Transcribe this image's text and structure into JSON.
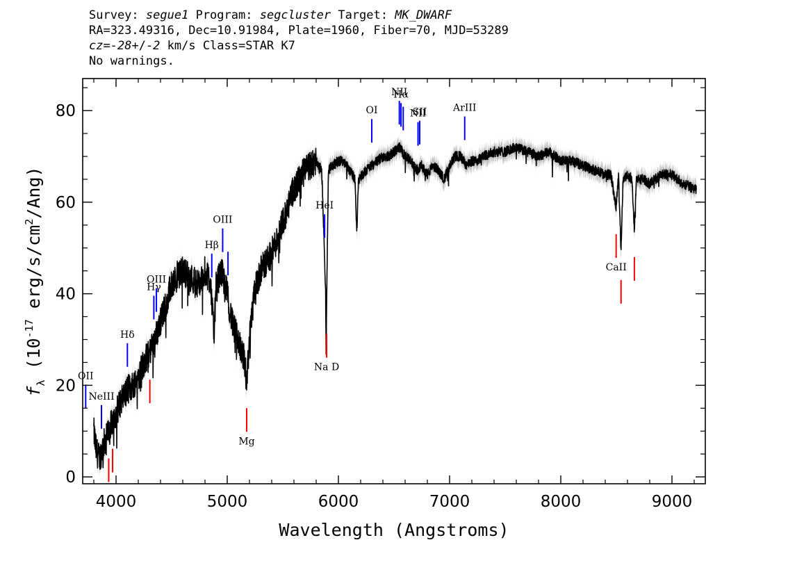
{
  "header": {
    "survey_label": "Survey:",
    "survey": "segue1",
    "program_label": "Program:",
    "program": "segcluster",
    "target_label": "Target:",
    "target": "MK_DWARF",
    "line2": "RA=323.49316, Dec=10.91984, Plate=1960, Fiber=70, MJD=53289",
    "cz_label": "cz=",
    "cz_value": "-28",
    "cz_pm": "+/-",
    "cz_err": "2",
    "cz_rest": " km/s Class=STAR K7",
    "line4": "No warnings."
  },
  "colors": {
    "emission": "#0000ff",
    "absorption": "#ff0000",
    "flux": "#000000",
    "error": "#bebebe"
  },
  "chart_data": {
    "type": "line",
    "xlabel": "Wavelength (Angstroms)",
    "ylabel": "fλ (10^-17 erg/s/cm^2/Ang)",
    "xlim": [
      3700,
      9300
    ],
    "ylim": [
      -1.5,
      87
    ],
    "xticks": [
      4000,
      5000,
      6000,
      7000,
      8000,
      9000
    ],
    "yticks": [
      0,
      20,
      40,
      60,
      80
    ],
    "series": [
      {
        "x": [
          3800,
          3820,
          3850,
          3900,
          3950,
          4000,
          4050,
          4100,
          4150,
          4200,
          4250,
          4300,
          4350,
          4400,
          4450,
          4500,
          4550,
          4600,
          4650,
          4700,
          4750,
          4800,
          4850,
          4880,
          4900,
          4950,
          5000,
          5050,
          5100,
          5150,
          5175,
          5200,
          5250,
          5300,
          5350,
          5400,
          5450,
          5500,
          5550,
          5600,
          5650,
          5700,
          5750,
          5800,
          5850,
          5870,
          5885,
          5890,
          5895,
          5910,
          5950,
          6000,
          6050,
          6100,
          6150,
          6165,
          6180,
          6250,
          6300,
          6350,
          6400,
          6450,
          6500,
          6550,
          6600,
          6650,
          6700,
          6750,
          6800,
          6850,
          6900,
          6950,
          7000,
          7050,
          7100,
          7150,
          7200,
          7250,
          7300,
          7400,
          7500,
          7600,
          7700,
          7800,
          7900,
          8000,
          8100,
          8200,
          8300,
          8400,
          8450,
          8498,
          8520,
          8542,
          8560,
          8600,
          8640,
          8662,
          8680,
          8750,
          8800,
          8900,
          9000,
          9100,
          9200,
          9220
        ],
        "y": [
          10,
          6,
          4,
          8,
          11,
          14,
          17,
          19,
          20,
          22,
          25,
          27,
          30,
          34,
          38,
          42,
          44,
          45,
          44,
          43,
          42,
          45,
          43,
          31,
          42,
          45,
          40,
          33,
          30,
          26,
          21,
          30,
          41,
          45,
          47,
          49,
          52,
          56,
          59,
          63,
          65,
          67,
          68,
          69,
          67,
          52,
          40,
          26,
          40,
          67,
          68,
          69,
          69,
          67,
          65,
          53,
          65,
          67,
          68,
          69,
          70,
          70,
          71,
          72,
          70,
          69,
          67,
          68,
          66,
          68,
          67,
          65,
          68,
          70,
          70,
          68,
          69,
          69,
          70,
          71,
          71,
          72,
          71,
          70,
          71,
          69,
          69,
          68,
          67,
          66,
          66,
          59,
          66,
          49,
          65,
          66,
          65,
          54,
          65,
          65,
          64,
          66,
          66,
          64,
          63,
          63
        ]
      }
    ],
    "emission_lines": [
      {
        "label": "OII",
        "wave": 3727
      },
      {
        "label": "NeIII",
        "wave": 3869
      },
      {
        "label": "Hδ",
        "wave": 4102
      },
      {
        "label": "Hγ",
        "wave": 4340
      },
      {
        "label": "OIII",
        "wave": 4363
      },
      {
        "label": "Hβ",
        "wave": 4861
      },
      {
        "label": "OIII",
        "wave": 4959
      },
      {
        "label": "",
        "wave": 5007
      },
      {
        "label": "HeI",
        "wave": 5876
      },
      {
        "label": "OI",
        "wave": 6300
      },
      {
        "label": "NII",
        "wave": 6548
      },
      {
        "label": "Hα",
        "wave": 6563
      },
      {
        "label": "",
        "wave": 6583
      },
      {
        "label": "NII",
        "wave": 6716
      },
      {
        "label": "SII",
        "wave": 6731
      },
      {
        "label": "ArIII",
        "wave": 7136
      }
    ],
    "absorption_lines": [
      {
        "label": "",
        "wave": 3934
      },
      {
        "label": "",
        "wave": 3969
      },
      {
        "label": "",
        "wave": 4304
      },
      {
        "label": "Mg",
        "wave": 5175
      },
      {
        "label": "Na D",
        "wave": 5894
      },
      {
        "label": "CaII",
        "wave": 8498
      },
      {
        "label": "",
        "wave": 8542
      },
      {
        "label": "",
        "wave": 8662
      }
    ]
  }
}
